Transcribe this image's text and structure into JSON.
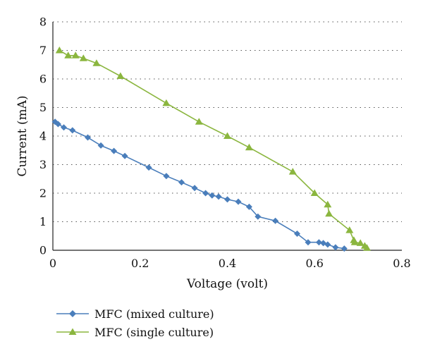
{
  "chart_data": {
    "type": "line",
    "xlabel": "Voltage (volt)",
    "ylabel": "Current (mA)",
    "xlim": [
      0,
      0.8
    ],
    "ylim": [
      0,
      8
    ],
    "xticks": [
      "0",
      "0.2",
      "0.4",
      "0.6",
      "0.8"
    ],
    "yticks": [
      "0",
      "1",
      "2",
      "3",
      "4",
      "5",
      "6",
      "7",
      "8"
    ],
    "grid": "horizontal-dotted",
    "legend_position": "bottom-left",
    "series": [
      {
        "name": "MFC (mixed culture)",
        "color": "#4a7ebb",
        "marker": "diamond",
        "points": [
          [
            0.005,
            4.5
          ],
          [
            0.012,
            4.42
          ],
          [
            0.025,
            4.3
          ],
          [
            0.045,
            4.2
          ],
          [
            0.08,
            3.95
          ],
          [
            0.11,
            3.67
          ],
          [
            0.14,
            3.48
          ],
          [
            0.165,
            3.3
          ],
          [
            0.22,
            2.9
          ],
          [
            0.26,
            2.6
          ],
          [
            0.295,
            2.38
          ],
          [
            0.325,
            2.18
          ],
          [
            0.35,
            2.0
          ],
          [
            0.365,
            1.92
          ],
          [
            0.38,
            1.88
          ],
          [
            0.4,
            1.78
          ],
          [
            0.425,
            1.7
          ],
          [
            0.45,
            1.52
          ],
          [
            0.47,
            1.18
          ],
          [
            0.51,
            1.03
          ],
          [
            0.56,
            0.58
          ],
          [
            0.585,
            0.28
          ],
          [
            0.61,
            0.28
          ],
          [
            0.62,
            0.25
          ],
          [
            0.63,
            0.2
          ],
          [
            0.648,
            0.1
          ],
          [
            0.668,
            0.06
          ]
        ]
      },
      {
        "name": "MFC (single culture)",
        "color": "#8bb63f",
        "marker": "triangle",
        "points": [
          [
            0.015,
            7.0
          ],
          [
            0.035,
            6.82
          ],
          [
            0.052,
            6.82
          ],
          [
            0.07,
            6.72
          ],
          [
            0.1,
            6.55
          ],
          [
            0.155,
            6.1
          ],
          [
            0.26,
            5.15
          ],
          [
            0.335,
            4.5
          ],
          [
            0.4,
            4.0
          ],
          [
            0.45,
            3.6
          ],
          [
            0.55,
            2.75
          ],
          [
            0.6,
            2.0
          ],
          [
            0.63,
            1.6
          ],
          [
            0.633,
            1.28
          ],
          [
            0.68,
            0.7
          ],
          [
            0.69,
            0.35
          ],
          [
            0.692,
            0.28
          ],
          [
            0.705,
            0.25
          ],
          [
            0.715,
            0.15
          ],
          [
            0.72,
            0.08
          ]
        ]
      }
    ]
  }
}
